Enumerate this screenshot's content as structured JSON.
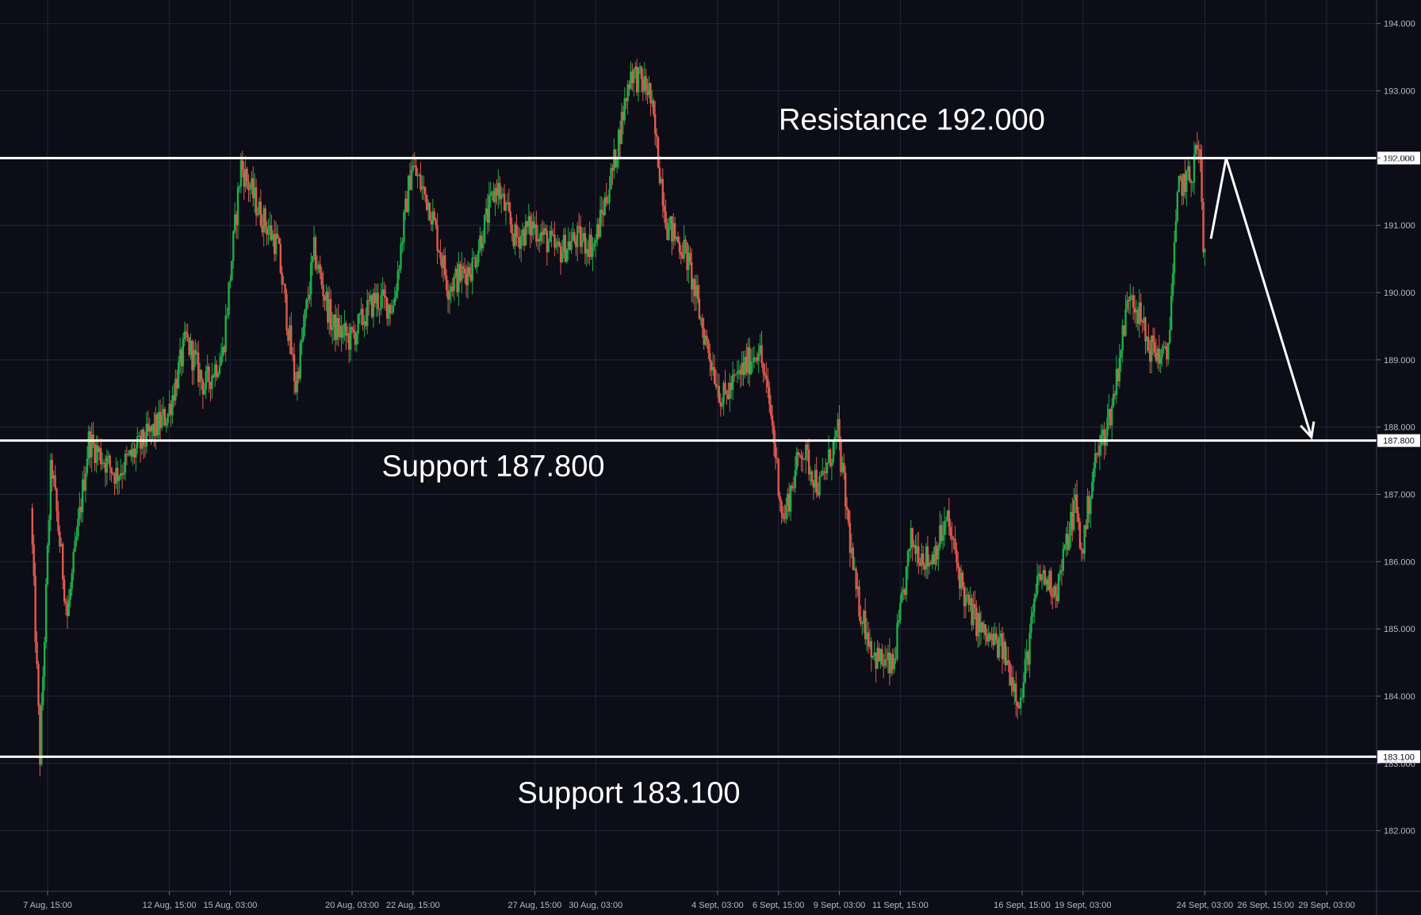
{
  "chart_data": {
    "type": "candlestick",
    "title": "",
    "xlabel": "",
    "ylabel": "",
    "ylim": [
      181.1,
      194.35
    ],
    "grid": true,
    "colors": {
      "background": "#0c0d17",
      "grid": "#23253a",
      "up": "#1fae4a",
      "down": "#e05a4f",
      "levels": "#ffffff",
      "axis_text": "#b8b9c4"
    },
    "y_ticks": [
      "194.000",
      "193.000",
      "192.000",
      "191.000",
      "190.000",
      "189.000",
      "188.000",
      "187.000",
      "186.000",
      "185.000",
      "184.000",
      "183.000",
      "182.000"
    ],
    "x_ticks": [
      "7 Aug, 15:00",
      "12 Aug, 15:00",
      "15 Aug, 03:00",
      "20 Aug, 03:00",
      "22 Aug, 15:00",
      "27 Aug, 15:00",
      "30 Aug, 03:00",
      "4 Sept, 03:00",
      "6 Sept, 15:00",
      "9 Sept, 03:00",
      "11 Sept, 15:00",
      "16 Sept, 15:00",
      "19 Sept, 03:00",
      "24 Sept, 03:00",
      "26 Sept, 15:00",
      "29 Sept, 03:00"
    ],
    "price_path": [
      {
        "x": "7 Aug, 00:00",
        "y": 186.8
      },
      {
        "x": "7 Aug, 09:00",
        "y": 183.1
      },
      {
        "x": "7 Aug, 20:00",
        "y": 187.5
      },
      {
        "x": "8 Aug, 12:00",
        "y": 185.2
      },
      {
        "x": "9 Aug, 09:00",
        "y": 187.8
      },
      {
        "x": "10 Aug, 12:00",
        "y": 187.3
      },
      {
        "x": "12 Aug, 15:00",
        "y": 188.2
      },
      {
        "x": "13 Aug, 09:00",
        "y": 189.3
      },
      {
        "x": "14 Aug, 03:00",
        "y": 188.6
      },
      {
        "x": "14 Aug, 21:00",
        "y": 189.1
      },
      {
        "x": "15 Aug, 15:00",
        "y": 191.9
      },
      {
        "x": "16 Aug, 09:00",
        "y": 191.2
      },
      {
        "x": "17 Aug, 03:00",
        "y": 190.7
      },
      {
        "x": "17 Aug, 21:00",
        "y": 188.6
      },
      {
        "x": "18 Aug, 15:00",
        "y": 190.6
      },
      {
        "x": "19 Aug, 09:00",
        "y": 189.5
      },
      {
        "x": "20 Aug, 03:00",
        "y": 189.3
      },
      {
        "x": "21 Aug, 03:00",
        "y": 189.9
      },
      {
        "x": "21 Aug, 21:00",
        "y": 189.8
      },
      {
        "x": "22 Aug, 15:00",
        "y": 191.9
      },
      {
        "x": "23 Aug, 09:00",
        "y": 191.3
      },
      {
        "x": "24 Aug, 03:00",
        "y": 190.1
      },
      {
        "x": "25 Aug, 03:00",
        "y": 190.4
      },
      {
        "x": "26 Aug, 03:00",
        "y": 191.6
      },
      {
        "x": "26 Aug, 21:00",
        "y": 190.8
      },
      {
        "x": "27 Aug, 15:00",
        "y": 191.0
      },
      {
        "x": "28 Aug, 15:00",
        "y": 190.6
      },
      {
        "x": "29 Aug, 09:00",
        "y": 190.8
      },
      {
        "x": "30 Aug, 03:00",
        "y": 190.7
      },
      {
        "x": "30 Aug, 21:00",
        "y": 191.8
      },
      {
        "x": "31 Aug, 15:00",
        "y": 193.3
      },
      {
        "x": "1 Sept, 09:00",
        "y": 193.0
      },
      {
        "x": "2 Sept, 03:00",
        "y": 191.0
      },
      {
        "x": "2 Sept, 21:00",
        "y": 190.6
      },
      {
        "x": "3 Sept, 15:00",
        "y": 189.4
      },
      {
        "x": "4 Sept, 09:00",
        "y": 188.4
      },
      {
        "x": "5 Sept, 03:00",
        "y": 188.8
      },
      {
        "x": "5 Sept, 21:00",
        "y": 189.2
      },
      {
        "x": "6 Sept, 09:00",
        "y": 188.2
      },
      {
        "x": "6 Sept, 21:00",
        "y": 186.6
      },
      {
        "x": "7 Sept, 15:00",
        "y": 187.7
      },
      {
        "x": "8 Sept, 09:00",
        "y": 187.1
      },
      {
        "x": "9 Sept, 03:00",
        "y": 187.9
      },
      {
        "x": "9 Sept, 21:00",
        "y": 185.5
      },
      {
        "x": "10 Sept, 15:00",
        "y": 184.6
      },
      {
        "x": "11 Sept, 09:00",
        "y": 184.4
      },
      {
        "x": "12 Sept, 03:00",
        "y": 186.3
      },
      {
        "x": "12 Sept, 21:00",
        "y": 186.0
      },
      {
        "x": "13 Sept, 15:00",
        "y": 186.6
      },
      {
        "x": "14 Sept, 09:00",
        "y": 185.4
      },
      {
        "x": "15 Sept, 03:00",
        "y": 184.9
      },
      {
        "x": "15 Sept, 21:00",
        "y": 184.7
      },
      {
        "x": "16 Sept, 15:00",
        "y": 183.9
      },
      {
        "x": "17 Sept, 09:00",
        "y": 185.8
      },
      {
        "x": "18 Sept, 03:00",
        "y": 185.6
      },
      {
        "x": "18 Sept, 21:00",
        "y": 186.9
      },
      {
        "x": "19 Sept, 03:00",
        "y": 186.1
      },
      {
        "x": "19 Sept, 15:00",
        "y": 187.4
      },
      {
        "x": "20 Sept, 09:00",
        "y": 188.3
      },
      {
        "x": "21 Sept, 03:00",
        "y": 190.1
      },
      {
        "x": "21 Sept, 21:00",
        "y": 189.2
      },
      {
        "x": "22 Sept, 15:00",
        "y": 189.0
      },
      {
        "x": "23 Sept, 03:00",
        "y": 191.6
      },
      {
        "x": "23 Sept, 15:00",
        "y": 191.7
      },
      {
        "x": "23 Sept, 21:00",
        "y": 192.2
      },
      {
        "x": "24 Sept, 00:00",
        "y": 191.9
      },
      {
        "x": "24 Sept, 03:00",
        "y": 190.6
      }
    ],
    "levels": [
      {
        "label": "Resistance 192.000",
        "value": 192.0,
        "badge": "192.000"
      },
      {
        "label": "Support 187.800",
        "value": 187.8,
        "badge": "187.800"
      },
      {
        "label": "Support 183.100",
        "value": 183.1,
        "badge": "183.100"
      }
    ],
    "projection": [
      {
        "x": "24 Sept, 09:00",
        "y": 190.8
      },
      {
        "x": "25 Sept, 00:00",
        "y": 192.0
      },
      {
        "x": "28 Sept, 12:00",
        "y": 187.85
      }
    ]
  }
}
